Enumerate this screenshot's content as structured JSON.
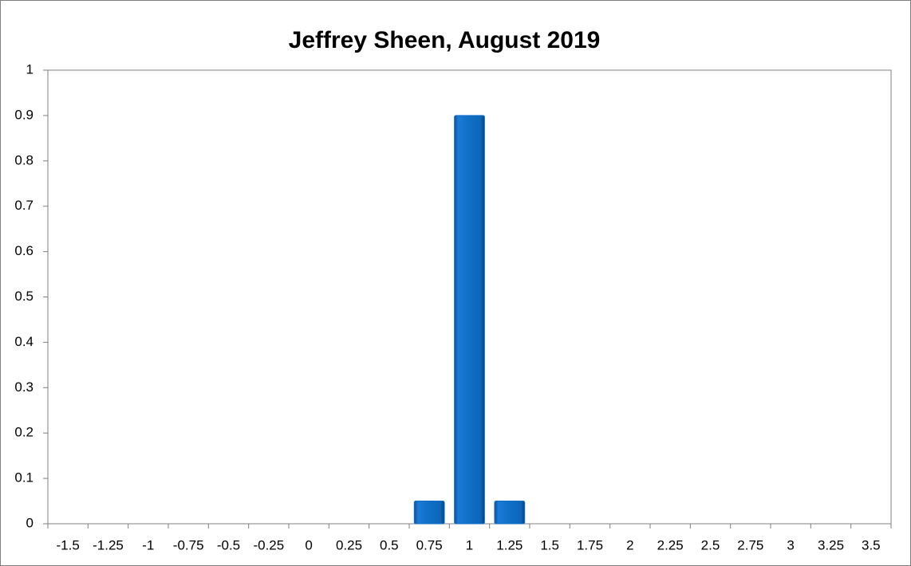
{
  "chart_data": {
    "type": "bar",
    "title": "Jeffrey Sheen, August 2019",
    "categories": [
      "-1.5",
      "-1.25",
      "-1",
      "-0.75",
      "-0.5",
      "-0.25",
      "0",
      "0.25",
      "0.5",
      "0.75",
      "1",
      "1.25",
      "1.5",
      "1.75",
      "2",
      "2.25",
      "2.5",
      "2.75",
      "3",
      "3.25",
      "3.5"
    ],
    "values": [
      0,
      0,
      0,
      0,
      0,
      0,
      0,
      0,
      0,
      0.05,
      0.9,
      0.05,
      0,
      0,
      0,
      0,
      0,
      0,
      0,
      0,
      0
    ],
    "color": "#0f6fc6",
    "ylim": [
      0,
      1
    ],
    "yticks": [
      0,
      0.1,
      0.2,
      0.3,
      0.4,
      0.5,
      0.6,
      0.7,
      0.8,
      0.9,
      1
    ],
    "grid": false
  }
}
